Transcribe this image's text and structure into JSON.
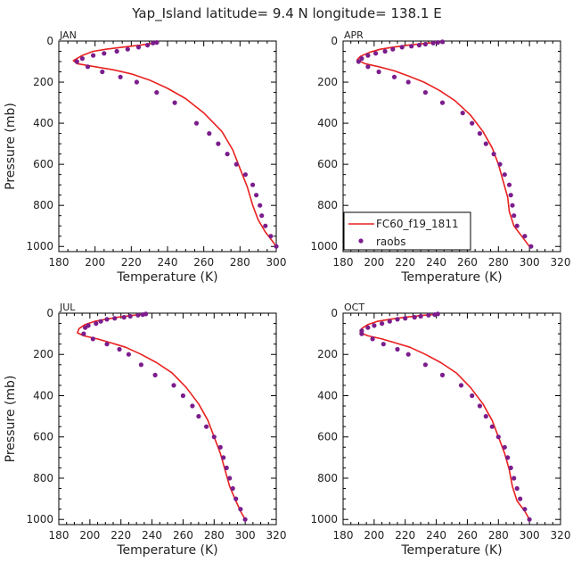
{
  "figure": {
    "title": "Yap_Island  latitude= 9.4 N longitude= 138.1 E"
  },
  "colors": {
    "model": "#e8211f",
    "obs": "#7b1d8c",
    "axis": "#000000"
  },
  "legend": {
    "model_label": "FC60_f19_1811",
    "obs_label": "raobs",
    "placement": "inside APR panel, lower-left"
  },
  "chart_data": [
    {
      "type": "line",
      "title": "JAN",
      "xlabel": "Temperature (K)",
      "ylabel": "Pressure (mb)",
      "xlim": [
        180,
        300
      ],
      "ylim": [
        1025,
        0
      ],
      "xticks": [
        180,
        200,
        220,
        240,
        260,
        280,
        300
      ],
      "yticks": [
        0,
        200,
        400,
        600,
        800,
        1000
      ],
      "series": [
        {
          "name": "FC60_f19_1811",
          "style": "line",
          "points": [
            [
              233,
              10
            ],
            [
              225,
              20
            ],
            [
              215,
              30
            ],
            [
              206,
              40
            ],
            [
              199,
              50
            ],
            [
              193,
              70
            ],
            [
              188,
              95
            ],
            [
              190,
              110
            ],
            [
              200,
              125
            ],
            [
              210,
              140
            ],
            [
              220,
              160
            ],
            [
              230,
              190
            ],
            [
              240,
              230
            ],
            [
              250,
              280
            ],
            [
              260,
              350
            ],
            [
              270,
              440
            ],
            [
              276,
              530
            ],
            [
              280,
              620
            ],
            [
              284,
              710
            ],
            [
              287,
              800
            ],
            [
              290,
              870
            ],
            [
              294,
              930
            ],
            [
              298,
              975
            ],
            [
              300,
              1000
            ]
          ]
        },
        {
          "name": "raobs",
          "style": "markers",
          "points": [
            [
              234,
              7
            ],
            [
              232,
              10
            ],
            [
              229,
              20
            ],
            [
              224,
              30
            ],
            [
              218,
              40
            ],
            [
              212,
              50
            ],
            [
              205,
              60
            ],
            [
              199,
              70
            ],
            [
              193,
              85
            ],
            [
              190,
              100
            ],
            [
              196,
              125
            ],
            [
              204,
              150
            ],
            [
              214,
              175
            ],
            [
              223,
              200
            ],
            [
              234,
              250
            ],
            [
              244,
              300
            ],
            [
              256,
              400
            ],
            [
              263,
              450
            ],
            [
              268,
              500
            ],
            [
              273,
              550
            ],
            [
              278,
              600
            ],
            [
              283,
              650
            ],
            [
              287,
              700
            ],
            [
              289,
              750
            ],
            [
              291,
              800
            ],
            [
              292,
              850
            ],
            [
              294,
              900
            ],
            [
              297,
              950
            ],
            [
              300,
              1000
            ]
          ]
        }
      ]
    },
    {
      "type": "line",
      "title": "APR",
      "xlabel": "Temperature (K)",
      "ylabel": "",
      "xlim": [
        180,
        320
      ],
      "ylim": [
        1025,
        0
      ],
      "xticks": [
        180,
        200,
        220,
        240,
        260,
        280,
        300,
        320
      ],
      "yticks": [
        0,
        200,
        400,
        600,
        800,
        1000
      ],
      "series": [
        {
          "name": "FC60_f19_1811",
          "style": "line",
          "points": [
            [
              244,
              5
            ],
            [
              235,
              10
            ],
            [
              222,
              20
            ],
            [
              212,
              30
            ],
            [
              204,
              40
            ],
            [
              197,
              55
            ],
            [
              191,
              75
            ],
            [
              189,
              92
            ],
            [
              194,
              110
            ],
            [
              203,
              125
            ],
            [
              213,
              145
            ],
            [
              222,
              170
            ],
            [
              232,
              200
            ],
            [
              242,
              240
            ],
            [
              252,
              290
            ],
            [
              262,
              360
            ],
            [
              270,
              440
            ],
            [
              276,
              520
            ],
            [
              280,
              600
            ],
            [
              283,
              680
            ],
            [
              286,
              760
            ],
            [
              287,
              830
            ],
            [
              290,
              900
            ],
            [
              295,
              950
            ],
            [
              300,
              1000
            ]
          ]
        },
        {
          "name": "raobs",
          "style": "markers",
          "points": [
            [
              244,
              4
            ],
            [
              241,
              7
            ],
            [
              238,
              10
            ],
            [
              233,
              15
            ],
            [
              229,
              20
            ],
            [
              224,
              25
            ],
            [
              218,
              30
            ],
            [
              212,
              40
            ],
            [
              207,
              50
            ],
            [
              201,
              60
            ],
            [
              196,
              70
            ],
            [
              192,
              85
            ],
            [
              190,
              100
            ],
            [
              196,
              125
            ],
            [
              203,
              150
            ],
            [
              213,
              175
            ],
            [
              222,
              200
            ],
            [
              233,
              250
            ],
            [
              244,
              300
            ],
            [
              257,
              350
            ],
            [
              263,
              400
            ],
            [
              268,
              450
            ],
            [
              272,
              500
            ],
            [
              277,
              550
            ],
            [
              281,
              600
            ],
            [
              284,
              650
            ],
            [
              287,
              700
            ],
            [
              288,
              750
            ],
            [
              289,
              800
            ],
            [
              290,
              850
            ],
            [
              292,
              900
            ],
            [
              297,
              950
            ],
            [
              301,
              1000
            ]
          ]
        }
      ]
    },
    {
      "type": "line",
      "title": "JUL",
      "xlabel": "Temperature (K)",
      "ylabel": "Pressure (mb)",
      "xlim": [
        180,
        320
      ],
      "ylim": [
        1025,
        0
      ],
      "xticks": [
        180,
        200,
        220,
        240,
        260,
        280,
        300,
        320
      ],
      "yticks": [
        0,
        200,
        400,
        600,
        800,
        1000
      ],
      "series": [
        {
          "name": "FC60_f19_1811",
          "style": "line",
          "points": [
            [
              236,
              5
            ],
            [
              228,
              10
            ],
            [
              218,
              20
            ],
            [
              210,
              30
            ],
            [
              203,
              40
            ],
            [
              197,
              55
            ],
            [
              193,
              75
            ],
            [
              192,
              95
            ],
            [
              196,
              110
            ],
            [
              205,
              125
            ],
            [
              214,
              145
            ],
            [
              223,
              165
            ],
            [
              233,
              200
            ],
            [
              243,
              240
            ],
            [
              253,
              290
            ],
            [
              262,
              360
            ],
            [
              270,
              440
            ],
            [
              276,
              520
            ],
            [
              280,
              600
            ],
            [
              284,
              680
            ],
            [
              287,
              760
            ],
            [
              290,
              840
            ],
            [
              294,
              910
            ],
            [
              297,
              960
            ],
            [
              300,
              1000
            ]
          ]
        },
        {
          "name": "raobs",
          "style": "markers",
          "points": [
            [
              236,
              4
            ],
            [
              234,
              7
            ],
            [
              231,
              10
            ],
            [
              226,
              15
            ],
            [
              222,
              20
            ],
            [
              216,
              25
            ],
            [
              211,
              30
            ],
            [
              207,
              40
            ],
            [
              204,
              50
            ],
            [
              199,
              60
            ],
            [
              197,
              70
            ],
            [
              196,
              100
            ],
            [
              202,
              125
            ],
            [
              211,
              150
            ],
            [
              219,
              175
            ],
            [
              225,
              200
            ],
            [
              233,
              250
            ],
            [
              242,
              300
            ],
            [
              254,
              350
            ],
            [
              260,
              400
            ],
            [
              266,
              450
            ],
            [
              270,
              500
            ],
            [
              275,
              550
            ],
            [
              280,
              600
            ],
            [
              284,
              650
            ],
            [
              286,
              700
            ],
            [
              288,
              750
            ],
            [
              290,
              800
            ],
            [
              292,
              850
            ],
            [
              294,
              900
            ],
            [
              297,
              950
            ],
            [
              300,
              1000
            ]
          ]
        }
      ]
    },
    {
      "type": "line",
      "title": "OCT",
      "xlabel": "Temperature (K)",
      "ylabel": "",
      "xlim": [
        180,
        320
      ],
      "ylim": [
        1025,
        0
      ],
      "xticks": [
        180,
        200,
        220,
        240,
        260,
        280,
        300,
        320
      ],
      "yticks": [
        0,
        200,
        400,
        600,
        800,
        1000
      ],
      "series": [
        {
          "name": "FC60_f19_1811",
          "style": "line",
          "points": [
            [
              241,
              5
            ],
            [
              232,
              10
            ],
            [
              220,
              20
            ],
            [
              210,
              30
            ],
            [
              202,
              40
            ],
            [
              196,
              55
            ],
            [
              192,
              75
            ],
            [
              191,
              95
            ],
            [
              196,
              110
            ],
            [
              205,
              125
            ],
            [
              214,
              145
            ],
            [
              223,
              165
            ],
            [
              233,
              200
            ],
            [
              243,
              240
            ],
            [
              253,
              290
            ],
            [
              262,
              360
            ],
            [
              270,
              440
            ],
            [
              276,
              520
            ],
            [
              280,
              600
            ],
            [
              284,
              680
            ],
            [
              287,
              760
            ],
            [
              289,
              840
            ],
            [
              292,
              910
            ],
            [
              297,
              960
            ],
            [
              300,
              1000
            ]
          ]
        },
        {
          "name": "raobs",
          "style": "markers",
          "points": [
            [
              241,
              4
            ],
            [
              239,
              7
            ],
            [
              235,
              10
            ],
            [
              230,
              15
            ],
            [
              226,
              20
            ],
            [
              220,
              25
            ],
            [
              215,
              30
            ],
            [
              210,
              40
            ],
            [
              205,
              50
            ],
            [
              200,
              60
            ],
            [
              196,
              70
            ],
            [
              192,
              85
            ],
            [
              192,
              100
            ],
            [
              199,
              125
            ],
            [
              206,
              150
            ],
            [
              215,
              175
            ],
            [
              222,
              200
            ],
            [
              233,
              250
            ],
            [
              244,
              300
            ],
            [
              256,
              350
            ],
            [
              263,
              400
            ],
            [
              268,
              450
            ],
            [
              272,
              500
            ],
            [
              276,
              550
            ],
            [
              280,
              600
            ],
            [
              284,
              650
            ],
            [
              286,
              700
            ],
            [
              288,
              750
            ],
            [
              290,
              800
            ],
            [
              292,
              850
            ],
            [
              294,
              900
            ],
            [
              297,
              950
            ],
            [
              300,
              1000
            ]
          ]
        }
      ]
    }
  ]
}
